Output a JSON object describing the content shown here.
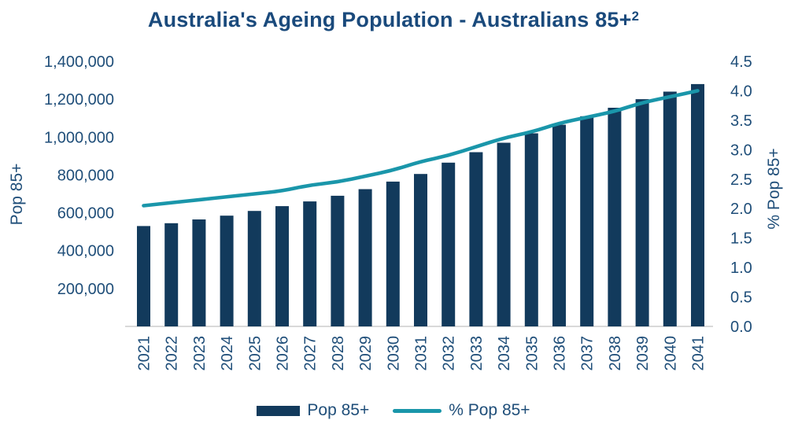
{
  "title": {
    "text": "Australia's Ageing Population - Australians 85+",
    "superscript": "2"
  },
  "colors": {
    "bar": "#123a5c",
    "line": "#1a96aa",
    "text": "#1f4e79",
    "title": "#1a4a7c",
    "baseline": "#d9d9d9",
    "background": "#ffffff"
  },
  "chart_data": {
    "type": "bar",
    "subtype": "bar-line-combo",
    "title": "Australia's Ageing Population - Australians 85+2",
    "categories": [
      "2021",
      "2022",
      "2023",
      "2024",
      "2025",
      "2026",
      "2027",
      "2028",
      "2029",
      "2030",
      "2031",
      "2032",
      "2033",
      "2034",
      "2035",
      "2036",
      "2037",
      "2038",
      "2039",
      "2040",
      "2041"
    ],
    "series": [
      {
        "name": "Pop 85+",
        "type": "bar",
        "axis": "left",
        "color": "#123a5c",
        "values": [
          530000,
          545000,
          565000,
          585000,
          610000,
          635000,
          660000,
          690000,
          725000,
          765000,
          805000,
          865000,
          920000,
          970000,
          1020000,
          1065000,
          1110000,
          1155000,
          1200000,
          1240000,
          1280000
        ]
      },
      {
        "name": "% Pop 85+",
        "type": "line",
        "axis": "right",
        "color": "#1a96aa",
        "values": [
          2.05,
          2.1,
          2.15,
          2.2,
          2.25,
          2.3,
          2.4,
          2.45,
          2.55,
          2.65,
          2.8,
          2.9,
          3.05,
          3.2,
          3.3,
          3.45,
          3.55,
          3.65,
          3.8,
          3.9,
          4.0
        ]
      }
    ],
    "axes": {
      "left": {
        "label": "Pop 85+",
        "min": 0,
        "max": 1400000,
        "tick_step": 200000,
        "ticks": [
          {
            "value": 200000,
            "label": "200,000"
          },
          {
            "value": 400000,
            "label": "400,000"
          },
          {
            "value": 600000,
            "label": "600,000"
          },
          {
            "value": 800000,
            "label": "800,000"
          },
          {
            "value": 1000000,
            "label": "1,000,000"
          },
          {
            "value": 1200000,
            "label": "1,200,000"
          },
          {
            "value": 1400000,
            "label": "1,400,000"
          }
        ]
      },
      "right": {
        "label": "% Pop 85+",
        "min": 0,
        "max": 4.5,
        "tick_step": 0.5,
        "ticks": [
          {
            "value": 0.0,
            "label": "0.0"
          },
          {
            "value": 0.5,
            "label": "0.5"
          },
          {
            "value": 1.0,
            "label": "1.0"
          },
          {
            "value": 1.5,
            "label": "1.5"
          },
          {
            "value": 2.0,
            "label": "2.0"
          },
          {
            "value": 2.5,
            "label": "2.5"
          },
          {
            "value": 3.0,
            "label": "3.0"
          },
          {
            "value": 3.5,
            "label": "3.5"
          },
          {
            "value": 4.0,
            "label": "4.0"
          },
          {
            "value": 4.5,
            "label": "4.5"
          }
        ]
      }
    },
    "legend": {
      "position": "bottom",
      "entries": [
        "Pop 85+",
        "% Pop 85+"
      ]
    },
    "grid": false
  }
}
